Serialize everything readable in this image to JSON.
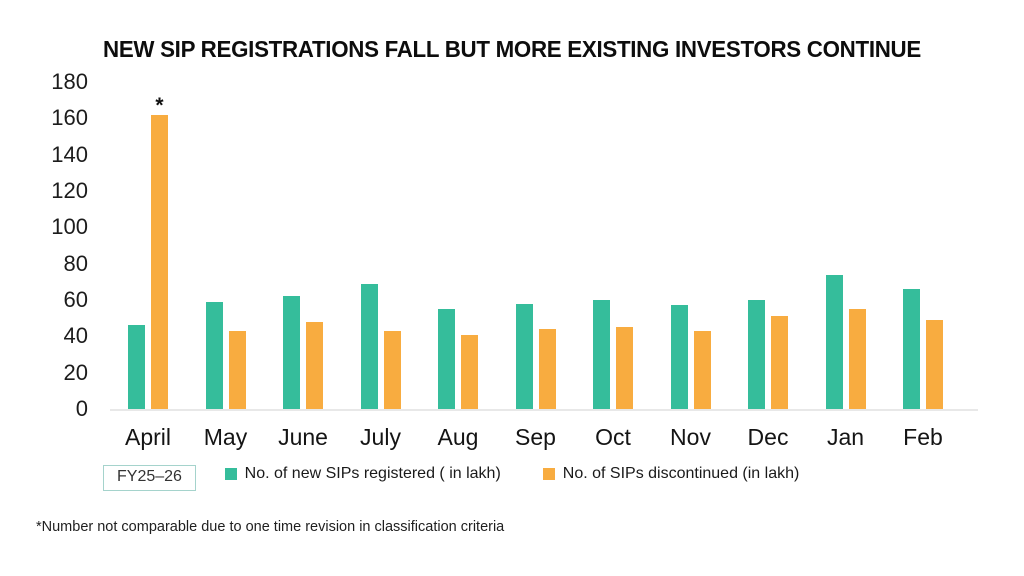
{
  "title": "NEW SIP REGISTRATIONS FALL BUT MORE EXISTING INVESTORS CONTINUE",
  "footnote": "*Number not comparable due to one time revision in classification criteria",
  "period_box_label": "FY25–26",
  "colors": {
    "registered": "#35bd9b",
    "discontinued": "#f8ac40",
    "axis_line": "#e8e8e8",
    "period_box_border": "#a5d3cc"
  },
  "legend": {
    "items": [
      {
        "label": "No. of new SIPs registered ( in lakh)",
        "color": "#35bd9b"
      },
      {
        "label": "No. of SIPs discontinued (in lakh)",
        "color": "#f8ac40"
      }
    ]
  },
  "chart_data": {
    "type": "bar",
    "title": "NEW SIP REGISTRATIONS FALL BUT MORE EXISTING INVESTORS CONTINUE",
    "categories": [
      "April",
      "May",
      "June",
      "July",
      "Aug",
      "Sep",
      "Oct",
      "Nov",
      "Dec",
      "Jan",
      "Feb"
    ],
    "series": [
      {
        "name": "No. of new SIPs registered ( in lakh)",
        "color": "#35bd9b",
        "values": [
          46,
          59,
          62,
          69,
          55,
          58,
          60,
          57,
          60,
          74,
          66
        ]
      },
      {
        "name": "No. of SIPs discontinued (in lakh)",
        "color": "#f8ac40",
        "values": [
          162,
          43,
          48,
          43,
          41,
          44,
          45,
          43,
          51,
          55,
          49
        ]
      }
    ],
    "xlabel": "",
    "ylabel": "",
    "ylim": [
      0,
      180
    ],
    "yticks": [
      0,
      20,
      40,
      60,
      80,
      100,
      120,
      140,
      160,
      180
    ],
    "grid": false,
    "legend_position": "bottom",
    "annotations": [
      {
        "category": "April",
        "series_index": 1,
        "text": "*",
        "note": "value not comparable"
      }
    ]
  }
}
